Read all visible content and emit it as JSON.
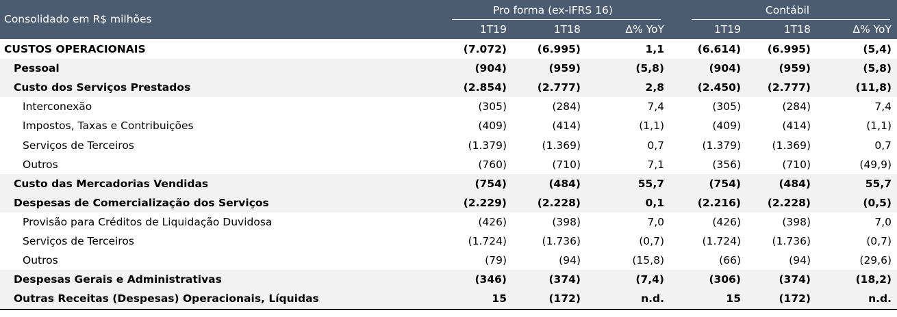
{
  "header": {
    "title": "Consolidado em R$ milhões",
    "groups": [
      "Pro forma (ex-IFRS 16)",
      "Contábil"
    ],
    "columns": [
      "1T19",
      "1T18",
      "Δ% YoY",
      "1T19",
      "1T18",
      "Δ% YoY"
    ]
  },
  "table": {
    "rows": [
      {
        "label": "CUSTOS OPERACIONAIS",
        "cells": [
          "(7.072)",
          "(6.995)",
          "1,1",
          "(6.614)",
          "(6.995)",
          "(5,4)"
        ]
      },
      {
        "label": "Pessoal",
        "cells": [
          "(904)",
          "(959)",
          "(5,8)",
          "(904)",
          "(959)",
          "(5,8)"
        ]
      },
      {
        "label": "Custo dos Serviços Prestados",
        "cells": [
          "(2.854)",
          "(2.777)",
          "2,8",
          "(2.450)",
          "(2.777)",
          "(11,8)"
        ]
      },
      {
        "label": "Interconexão",
        "cells": [
          "(305)",
          "(284)",
          "7,4",
          "(305)",
          "(284)",
          "7,4"
        ]
      },
      {
        "label": "Impostos, Taxas e Contribuições",
        "cells": [
          "(409)",
          "(414)",
          "(1,1)",
          "(409)",
          "(414)",
          "(1,1)"
        ]
      },
      {
        "label": "Serviços de Terceiros",
        "cells": [
          "(1.379)",
          "(1.369)",
          "0,7",
          "(1.379)",
          "(1.369)",
          "0,7"
        ]
      },
      {
        "label": "Outros",
        "cells": [
          "(760)",
          "(710)",
          "7,1",
          "(356)",
          "(710)",
          "(49,9)"
        ]
      },
      {
        "label": "Custo das Mercadorias Vendidas",
        "cells": [
          "(754)",
          "(484)",
          "55,7",
          "(754)",
          "(484)",
          "55,7"
        ]
      },
      {
        "label": "Despesas de Comercialização dos Serviços",
        "cells": [
          "(2.229)",
          "(2.228)",
          "0,1",
          "(2.216)",
          "(2.228)",
          "(0,5)"
        ]
      },
      {
        "label": "Provisão para Créditos de Liquidação Duvidosa",
        "cells": [
          "(426)",
          "(398)",
          "7,0",
          "(426)",
          "(398)",
          "7,0"
        ]
      },
      {
        "label": "Serviços de Terceiros",
        "cells": [
          "(1.724)",
          "(1.736)",
          "(0,7)",
          "(1.724)",
          "(1.736)",
          "(0,7)"
        ]
      },
      {
        "label": "Outros",
        "cells": [
          "(79)",
          "(94)",
          "(15,8)",
          "(66)",
          "(94)",
          "(29,6)"
        ]
      },
      {
        "label": "Despesas Gerais e Administrativas",
        "cells": [
          "(346)",
          "(374)",
          "(7,4)",
          "(306)",
          "(374)",
          "(18,2)"
        ]
      },
      {
        "label": "Outras Receitas (Despesas) Operacionais, Líquidas",
        "cells": [
          "15",
          "(172)",
          "n.d.",
          "15",
          "(172)",
          "n.d."
        ]
      }
    ]
  }
}
